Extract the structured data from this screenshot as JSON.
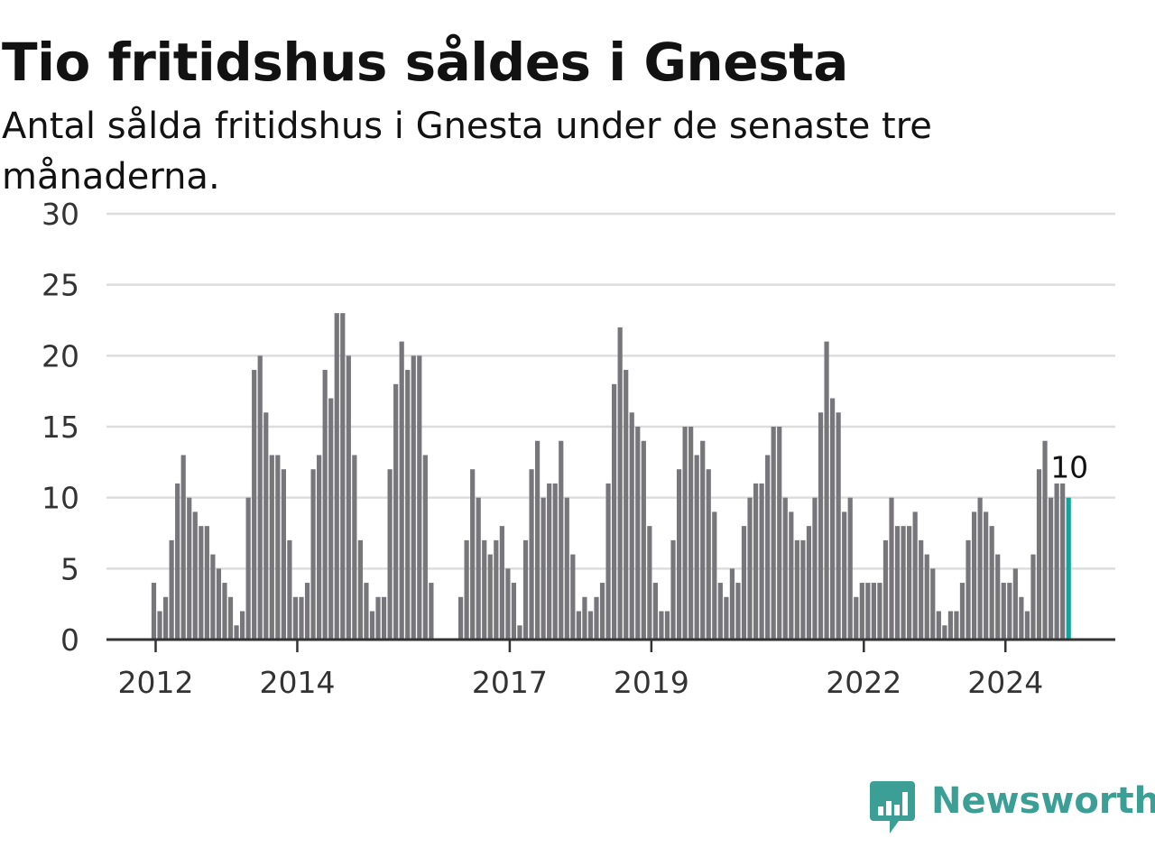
{
  "title": "Tio fritidshus såldes i Gnesta",
  "subtitle": "Antal sålda fritidshus i Gnesta under de senaste tre månaderna.",
  "brand": {
    "name": "Newsworthy",
    "icon": "bar-chart-speech-bubble-icon",
    "color": "#3c9f95"
  },
  "colors": {
    "bar": "#77767b",
    "highlight": "#15a399",
    "grid": "#dddddd",
    "axis": "#333333"
  },
  "chart_data": {
    "type": "bar",
    "title": "Tio fritidshus såldes i Gnesta",
    "xlabel": "",
    "ylabel": "",
    "ylim": [
      0,
      30
    ],
    "yticks": [
      0,
      5,
      10,
      15,
      20,
      25,
      30
    ],
    "grid": true,
    "legend": "none",
    "x_tick_labels": [
      {
        "label": "2012",
        "index": 0
      },
      {
        "label": "2014",
        "index": 24
      },
      {
        "label": "2017",
        "index": 60
      },
      {
        "label": "2019",
        "index": 84
      },
      {
        "label": "2022",
        "index": 120
      },
      {
        "label": "2024",
        "index": 144
      }
    ],
    "highlight_label": "10",
    "values": [
      4,
      2,
      3,
      7,
      11,
      13,
      10,
      9,
      8,
      8,
      6,
      5,
      4,
      3,
      1,
      2,
      10,
      19,
      20,
      16,
      13,
      13,
      12,
      7,
      3,
      3,
      4,
      12,
      13,
      19,
      17,
      23,
      23,
      20,
      13,
      7,
      4,
      2,
      3,
      3,
      12,
      18,
      21,
      19,
      20,
      20,
      13,
      4,
      null,
      null,
      null,
      null,
      3,
      7,
      12,
      10,
      7,
      6,
      7,
      8,
      5,
      4,
      1,
      7,
      12,
      14,
      10,
      11,
      11,
      14,
      10,
      6,
      2,
      3,
      2,
      3,
      4,
      11,
      18,
      22,
      19,
      16,
      15,
      14,
      8,
      4,
      2,
      2,
      7,
      12,
      15,
      15,
      13,
      14,
      12,
      9,
      4,
      3,
      5,
      4,
      8,
      10,
      11,
      11,
      13,
      15,
      15,
      10,
      9,
      7,
      7,
      8,
      10,
      16,
      21,
      17,
      16,
      9,
      10,
      3,
      4,
      4,
      4,
      4,
      7,
      10,
      8,
      8,
      8,
      9,
      7,
      6,
      5,
      2,
      1,
      2,
      2,
      4,
      7,
      9,
      10,
      9,
      8,
      6,
      4,
      4,
      5,
      3,
      2,
      6,
      12,
      14,
      10,
      11,
      11,
      10
    ]
  }
}
